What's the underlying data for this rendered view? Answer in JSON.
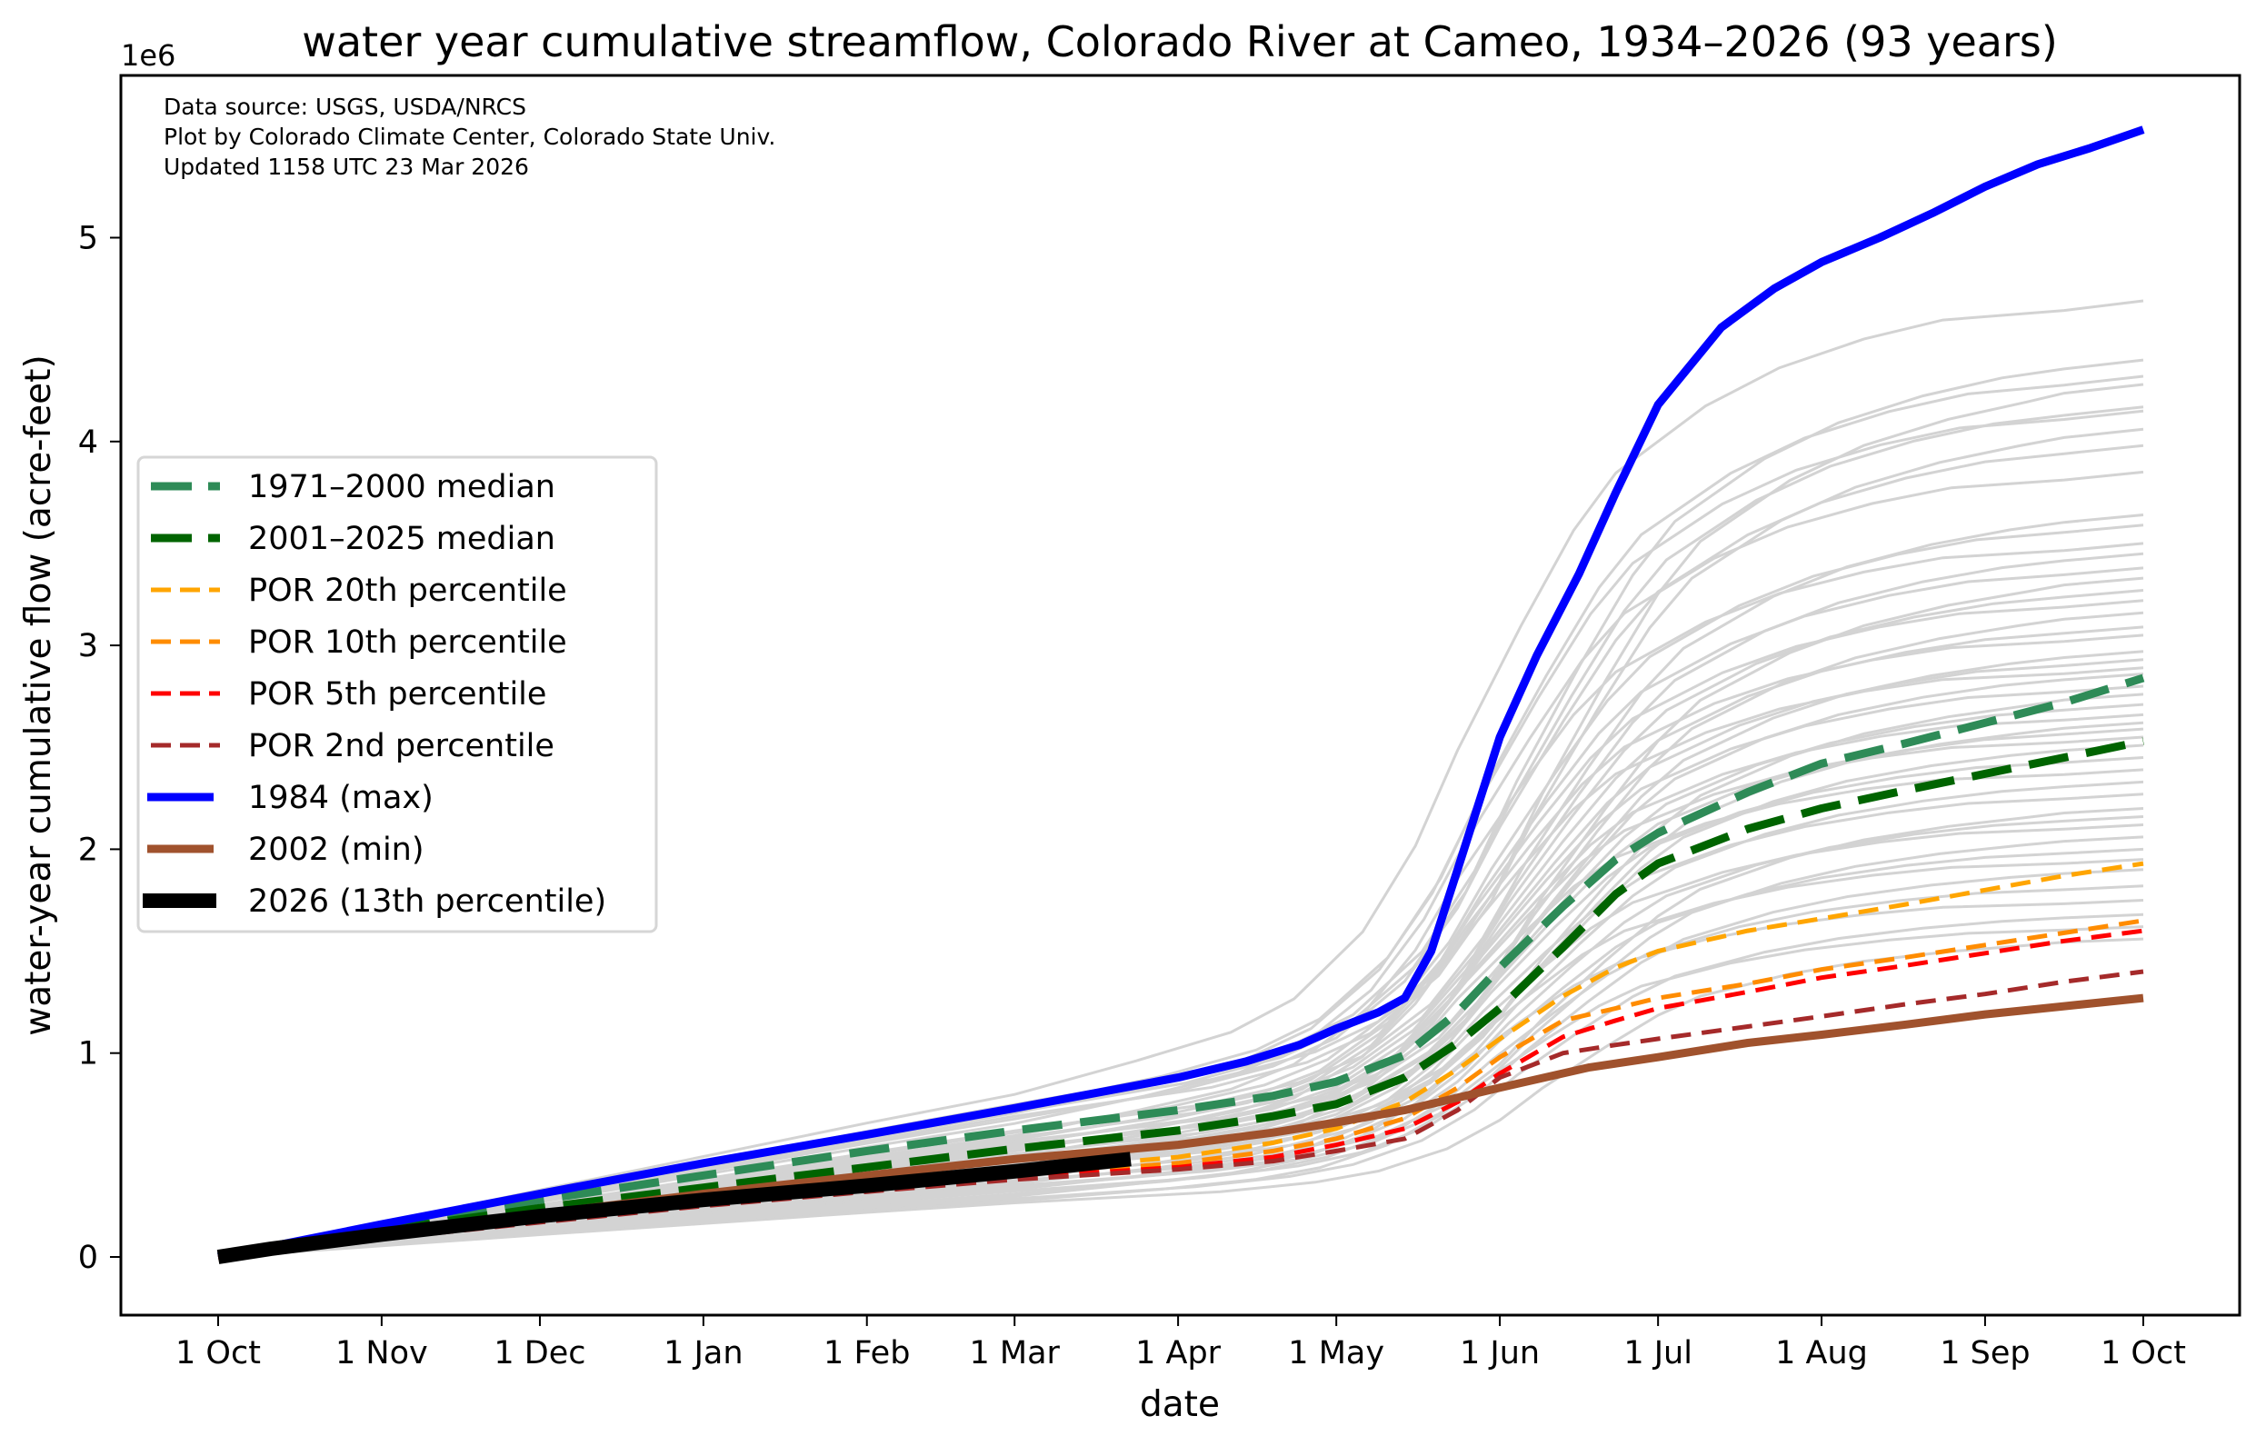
{
  "chart_data": {
    "type": "line",
    "title": "water year cumulative streamflow, Colorado River at Cameo, 1934–2026 (93 years)",
    "xlabel": "date",
    "ylabel": "water-year cumulative flow (acre-feet)",
    "y_offset_label": "1e6",
    "x_unit": "day of water year (0 = 1 Oct)",
    "xlim": [
      -15,
      381
    ],
    "ylim": [
      -0.25,
      5.85
    ],
    "y_scale": 1000000,
    "grid": false,
    "legend_position": "center-left",
    "annotations": [
      "Data source: USGS, USDA/NRCS",
      "Plot by Colorado Climate Center, Colorado State Univ.",
      "Updated 1158 UTC 23 Mar 2026"
    ],
    "x_ticks": [
      {
        "day": 0,
        "label": "1 Oct"
      },
      {
        "day": 31,
        "label": "1 Nov"
      },
      {
        "day": 61,
        "label": "1 Dec"
      },
      {
        "day": 92,
        "label": "1 Jan"
      },
      {
        "day": 123,
        "label": "1 Feb"
      },
      {
        "day": 151,
        "label": "1 Mar"
      },
      {
        "day": 182,
        "label": "1 Apr"
      },
      {
        "day": 212,
        "label": "1 May"
      },
      {
        "day": 243,
        "label": "1 Jun"
      },
      {
        "day": 273,
        "label": "1 Jul"
      },
      {
        "day": 304,
        "label": "1 Aug"
      },
      {
        "day": 335,
        "label": "1 Sep"
      },
      {
        "day": 365,
        "label": "1 Oct"
      }
    ],
    "y_ticks": [
      {
        "value": 0,
        "label": "0"
      },
      {
        "value": 1,
        "label": "1"
      },
      {
        "value": 2,
        "label": "2"
      },
      {
        "value": 3,
        "label": "3"
      },
      {
        "value": 4,
        "label": "4"
      },
      {
        "value": 5,
        "label": "5"
      }
    ],
    "series": [
      {
        "name": "1971–2000 median",
        "color": "#2e8b57",
        "style": "dashed",
        "weight": "heavy",
        "x": [
          0,
          31,
          61,
          92,
          123,
          151,
          182,
          200,
          212,
          225,
          235,
          243,
          255,
          265,
          273,
          290,
          304,
          320,
          335,
          350,
          365
        ],
        "y": [
          0,
          0.15,
          0.28,
          0.4,
          0.52,
          0.62,
          0.72,
          0.79,
          0.86,
          0.99,
          1.2,
          1.42,
          1.72,
          1.95,
          2.08,
          2.28,
          2.42,
          2.52,
          2.62,
          2.72,
          2.84
        ]
      },
      {
        "name": "2001–2025 median",
        "color": "#006400",
        "style": "dashed",
        "weight": "heavy",
        "x": [
          0,
          31,
          61,
          92,
          123,
          151,
          182,
          200,
          212,
          225,
          235,
          243,
          255,
          265,
          273,
          290,
          304,
          320,
          335,
          350,
          365
        ],
        "y": [
          0,
          0.13,
          0.24,
          0.34,
          0.44,
          0.53,
          0.62,
          0.69,
          0.75,
          0.88,
          1.05,
          1.22,
          1.52,
          1.78,
          1.93,
          2.1,
          2.2,
          2.29,
          2.37,
          2.45,
          2.53
        ]
      },
      {
        "name": "POR 20th percentile",
        "color": "#ffa500",
        "style": "dashed",
        "weight": "medium",
        "x": [
          0,
          31,
          61,
          92,
          123,
          151,
          182,
          200,
          212,
          225,
          235,
          243,
          255,
          265,
          273,
          290,
          304,
          320,
          335,
          350,
          365
        ],
        "y": [
          0,
          0.11,
          0.2,
          0.28,
          0.36,
          0.42,
          0.49,
          0.56,
          0.63,
          0.76,
          0.92,
          1.07,
          1.28,
          1.42,
          1.5,
          1.6,
          1.66,
          1.73,
          1.8,
          1.87,
          1.93
        ]
      },
      {
        "name": "POR 10th percentile",
        "color": "#ff8c00",
        "style": "dashed",
        "weight": "medium",
        "x": [
          0,
          31,
          61,
          92,
          123,
          151,
          182,
          200,
          212,
          225,
          235,
          243,
          255,
          265,
          273,
          290,
          304,
          320,
          335,
          350,
          365
        ],
        "y": [
          0,
          0.1,
          0.19,
          0.27,
          0.34,
          0.4,
          0.46,
          0.52,
          0.58,
          0.68,
          0.83,
          0.98,
          1.16,
          1.22,
          1.27,
          1.34,
          1.41,
          1.47,
          1.53,
          1.59,
          1.65
        ]
      },
      {
        "name": "POR 5th percentile",
        "color": "#ff0000",
        "style": "dashed",
        "weight": "medium",
        "x": [
          0,
          31,
          61,
          92,
          123,
          151,
          182,
          200,
          212,
          225,
          235,
          243,
          255,
          265,
          273,
          290,
          304,
          320,
          335,
          350,
          365
        ],
        "y": [
          0,
          0.1,
          0.18,
          0.26,
          0.33,
          0.39,
          0.44,
          0.49,
          0.55,
          0.63,
          0.76,
          0.9,
          1.08,
          1.16,
          1.22,
          1.3,
          1.37,
          1.43,
          1.49,
          1.55,
          1.6
        ]
      },
      {
        "name": "POR 2nd percentile",
        "color": "#a52a2a",
        "style": "dashed",
        "weight": "medium",
        "x": [
          0,
          31,
          61,
          92,
          123,
          151,
          182,
          200,
          212,
          225,
          235,
          243,
          255,
          265,
          273,
          290,
          304,
          320,
          335,
          350,
          365
        ],
        "y": [
          0,
          0.09,
          0.17,
          0.25,
          0.32,
          0.38,
          0.43,
          0.47,
          0.52,
          0.58,
          0.72,
          0.88,
          1.0,
          1.04,
          1.07,
          1.13,
          1.18,
          1.24,
          1.29,
          1.35,
          1.4
        ]
      },
      {
        "name": "1984 (max)",
        "color": "#0000ff",
        "style": "solid",
        "weight": "heavy",
        "x": [
          0,
          31,
          61,
          92,
          123,
          151,
          182,
          195,
          205,
          212,
          220,
          225,
          230,
          235,
          243,
          250,
          258,
          265,
          273,
          285,
          295,
          304,
          315,
          325,
          335,
          345,
          355,
          365
        ],
        "y": [
          0,
          0.16,
          0.31,
          0.46,
          0.6,
          0.73,
          0.88,
          0.96,
          1.04,
          1.12,
          1.2,
          1.27,
          1.5,
          1.9,
          2.55,
          2.95,
          3.35,
          3.75,
          4.18,
          4.56,
          4.75,
          4.88,
          5.0,
          5.12,
          5.25,
          5.36,
          5.44,
          5.53
        ]
      },
      {
        "name": "2002 (min)",
        "color": "#a0522d",
        "style": "solid",
        "weight": "heavy",
        "x": [
          0,
          31,
          61,
          92,
          123,
          151,
          182,
          200,
          212,
          225,
          243,
          260,
          273,
          290,
          304,
          320,
          335,
          350,
          365
        ],
        "y": [
          0,
          0.11,
          0.21,
          0.31,
          0.4,
          0.48,
          0.55,
          0.61,
          0.66,
          0.72,
          0.83,
          0.93,
          0.98,
          1.05,
          1.09,
          1.14,
          1.19,
          1.23,
          1.27
        ]
      },
      {
        "name": "2026 (13th percentile)",
        "color": "#000000",
        "style": "solid",
        "weight": "extra-heavy",
        "x": [
          0,
          10,
          31,
          61,
          92,
          123,
          151,
          173
        ],
        "y": [
          0,
          0.04,
          0.11,
          0.2,
          0.28,
          0.35,
          0.42,
          0.48
        ]
      }
    ],
    "background_years": {
      "color": "#d3d3d3",
      "count_description": "individual water years 1934–2025 (gray lines)",
      "final_values": [
        4.69,
        4.4,
        4.32,
        4.28,
        4.17,
        4.15,
        4.06,
        3.98,
        3.85,
        3.64,
        3.59,
        3.5,
        3.45,
        3.38,
        3.33,
        3.27,
        3.22,
        3.16,
        3.09,
        3.05,
        2.97,
        2.93,
        2.89,
        2.86,
        2.8,
        2.76,
        2.71,
        2.66,
        2.62,
        2.59,
        2.55,
        2.51,
        2.45,
        2.39,
        2.33,
        2.27,
        2.2,
        2.16,
        2.12,
        2.06,
        2.0,
        1.95,
        1.9,
        1.82,
        1.75,
        1.68,
        1.62,
        1.56
      ]
    }
  }
}
